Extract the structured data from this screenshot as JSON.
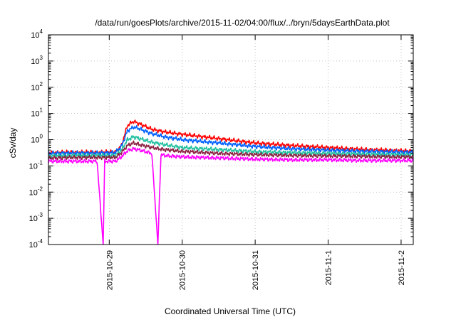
{
  "chart_data": {
    "type": "line",
    "title": "/data/run/goesPlots/archive/2015-11-02/04:00/flux/../bryn/5daysEarthData.plot",
    "xlabel": "Coordinated Universal Time (UTC)",
    "ylabel": "cSv/day",
    "y_scale": "log",
    "ylim": [
      0.0001,
      10000
    ],
    "xlim": [
      "2015-10-28 04:00",
      "2015-11-02 04:00"
    ],
    "grid": "dotted",
    "legend": "none",
    "y_ticks": [
      {
        "value": 0.0001,
        "base": "10",
        "exp": "-4"
      },
      {
        "value": 0.001,
        "base": "10",
        "exp": "-3"
      },
      {
        "value": 0.01,
        "base": "10",
        "exp": "-2"
      },
      {
        "value": 0.1,
        "base": "10",
        "exp": "-1"
      },
      {
        "value": 1,
        "base": "10",
        "exp": "0"
      },
      {
        "value": 10,
        "base": "10",
        "exp": "1"
      },
      {
        "value": 100,
        "base": "10",
        "exp": "2"
      },
      {
        "value": 1000,
        "base": "10",
        "exp": "3"
      },
      {
        "value": 10000,
        "base": "10",
        "exp": "4"
      }
    ],
    "x_ticks": [
      {
        "value": "2015-10-29 00:00",
        "label": "2015-10-29"
      },
      {
        "value": "2015-10-30 00:00",
        "label": "2015-10-30"
      },
      {
        "value": "2015-10-31 00:00",
        "label": "2015-10-31"
      },
      {
        "value": "2015-11-01 00:00",
        "label": "2015-11-1"
      },
      {
        "value": "2015-11-02 00:00",
        "label": "2015-11-2"
      }
    ],
    "series": [
      {
        "color": "#ff0000",
        "values": [
          [
            "2015-10-28 04:00",
            0.32
          ],
          [
            "2015-10-28 12:00",
            0.33
          ],
          [
            "2015-10-28 20:00",
            0.33
          ],
          [
            "2015-10-29 02:00",
            0.34
          ],
          [
            "2015-10-29 04:00",
            0.6
          ],
          [
            "2015-10-29 06:00",
            3.5
          ],
          [
            "2015-10-29 08:00",
            5.0
          ],
          [
            "2015-10-29 10:00",
            4.0
          ],
          [
            "2015-10-29 14:00",
            2.5
          ],
          [
            "2015-10-29 18:00",
            2.0
          ],
          [
            "2015-10-30 00:00",
            1.6
          ],
          [
            "2015-10-30 12:00",
            1.1
          ],
          [
            "2015-10-31 00:00",
            0.75
          ],
          [
            "2015-10-31 12:00",
            0.6
          ],
          [
            "2015-11-01 00:00",
            0.5
          ],
          [
            "2015-11-01 12:00",
            0.42
          ],
          [
            "2015-11-02 00:00",
            0.38
          ],
          [
            "2015-11-02 04:00",
            0.36
          ]
        ]
      },
      {
        "color": "#0060ff",
        "values": [
          [
            "2015-10-28 04:00",
            0.3
          ],
          [
            "2015-10-28 12:00",
            0.31
          ],
          [
            "2015-10-28 20:00",
            0.31
          ],
          [
            "2015-10-29 02:00",
            0.32
          ],
          [
            "2015-10-29 04:00",
            0.55
          ],
          [
            "2015-10-29 06:00",
            2.2
          ],
          [
            "2015-10-29 08:00",
            3.0
          ],
          [
            "2015-10-29 10:00",
            2.6
          ],
          [
            "2015-10-29 14:00",
            1.7
          ],
          [
            "2015-10-29 18:00",
            1.3
          ],
          [
            "2015-10-30 00:00",
            1.0
          ],
          [
            "2015-10-30 12:00",
            0.75
          ],
          [
            "2015-10-31 00:00",
            0.55
          ],
          [
            "2015-10-31 12:00",
            0.45
          ],
          [
            "2015-11-01 00:00",
            0.4
          ],
          [
            "2015-11-01 12:00",
            0.36
          ],
          [
            "2015-11-02 00:00",
            0.34
          ],
          [
            "2015-11-02 04:00",
            0.33
          ]
        ]
      },
      {
        "color": "#20c0a0",
        "values": [
          [
            "2015-10-28 04:00",
            0.24
          ],
          [
            "2015-10-28 12:00",
            0.25
          ],
          [
            "2015-10-28 20:00",
            0.25
          ],
          [
            "2015-10-29 02:00",
            0.25
          ],
          [
            "2015-10-29 04:00",
            0.4
          ],
          [
            "2015-10-29 06:00",
            1.0
          ],
          [
            "2015-10-29 08:00",
            1.3
          ],
          [
            "2015-10-29 10:00",
            1.1
          ],
          [
            "2015-10-29 14:00",
            0.8
          ],
          [
            "2015-10-29 18:00",
            0.65
          ],
          [
            "2015-10-30 00:00",
            0.5
          ],
          [
            "2015-10-30 12:00",
            0.42
          ],
          [
            "2015-10-31 00:00",
            0.35
          ],
          [
            "2015-10-31 12:00",
            0.32
          ],
          [
            "2015-11-01 00:00",
            0.3
          ],
          [
            "2015-11-01 12:00",
            0.28
          ],
          [
            "2015-11-02 00:00",
            0.27
          ],
          [
            "2015-11-02 04:00",
            0.27
          ]
        ]
      },
      {
        "color": "#8a2040",
        "values": [
          [
            "2015-10-28 04:00",
            0.2
          ],
          [
            "2015-10-28 12:00",
            0.21
          ],
          [
            "2015-10-28 20:00",
            0.21
          ],
          [
            "2015-10-29 02:00",
            0.21
          ],
          [
            "2015-10-29 04:00",
            0.32
          ],
          [
            "2015-10-29 06:00",
            0.6
          ],
          [
            "2015-10-29 08:00",
            0.75
          ],
          [
            "2015-10-29 10:00",
            0.65
          ],
          [
            "2015-10-29 14:00",
            0.5
          ],
          [
            "2015-10-29 18:00",
            0.42
          ],
          [
            "2015-10-30 00:00",
            0.36
          ],
          [
            "2015-10-30 12:00",
            0.3
          ],
          [
            "2015-10-31 00:00",
            0.27
          ],
          [
            "2015-10-31 12:00",
            0.25
          ],
          [
            "2015-11-01 00:00",
            0.24
          ],
          [
            "2015-11-01 12:00",
            0.23
          ],
          [
            "2015-11-02 00:00",
            0.22
          ],
          [
            "2015-11-02 04:00",
            0.22
          ]
        ]
      },
      {
        "color": "#ff00ff",
        "values": [
          [
            "2015-10-28 04:00",
            0.15
          ],
          [
            "2015-10-28 12:00",
            0.15
          ],
          [
            "2015-10-28 20:00",
            0.15
          ],
          [
            "2015-10-28 22:00",
            0.0001
          ],
          [
            "2015-10-28 22:30",
            0.15
          ],
          [
            "2015-10-29 02:00",
            0.15
          ],
          [
            "2015-10-29 04:00",
            0.22
          ],
          [
            "2015-10-29 06:00",
            0.38
          ],
          [
            "2015-10-29 08:00",
            0.45
          ],
          [
            "2015-10-29 10:00",
            0.4
          ],
          [
            "2015-10-29 14:00",
            0.3
          ],
          [
            "2015-10-29 16:00",
            0.0001
          ],
          [
            "2015-10-29 17:00",
            0.27
          ],
          [
            "2015-10-29 18:00",
            0.25
          ],
          [
            "2015-10-30 00:00",
            0.22
          ],
          [
            "2015-10-30 12:00",
            0.2
          ],
          [
            "2015-10-31 00:00",
            0.18
          ],
          [
            "2015-10-31 12:00",
            0.17
          ],
          [
            "2015-11-01 00:00",
            0.17
          ],
          [
            "2015-11-01 12:00",
            0.16
          ],
          [
            "2015-11-02 00:00",
            0.16
          ],
          [
            "2015-11-02 04:00",
            0.16
          ]
        ]
      }
    ]
  }
}
